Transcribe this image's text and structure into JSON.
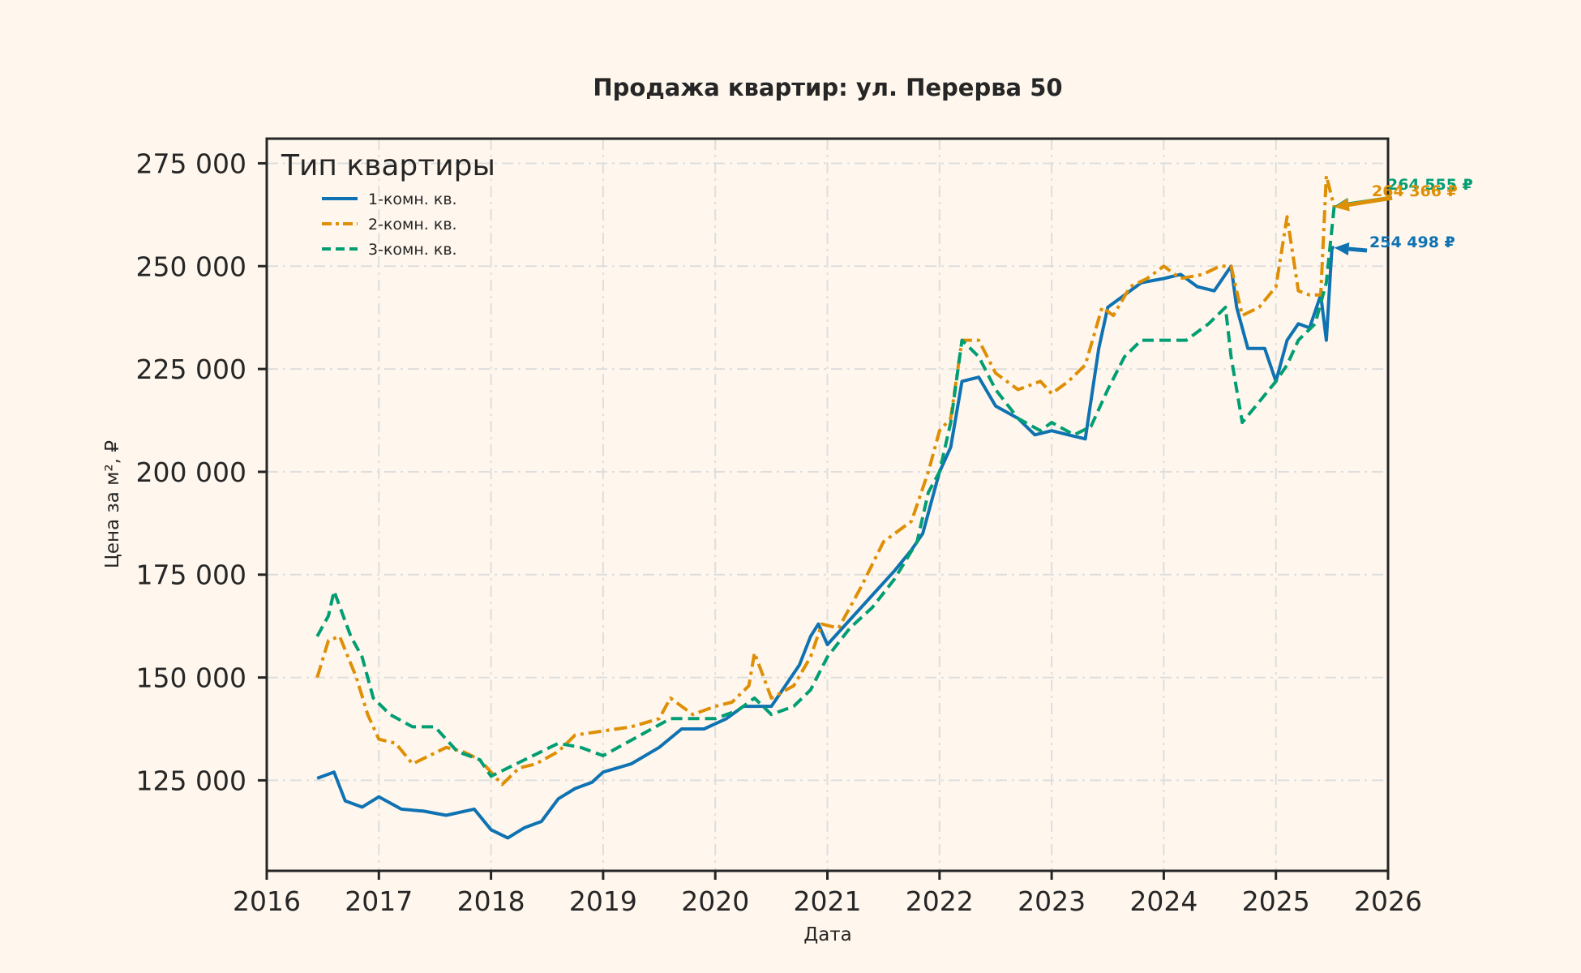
{
  "chart_data": {
    "type": "line",
    "title": "Продажа квартир: ул. Перерва 50",
    "xlabel": "Дата",
    "ylabel": "Цена за м², ₽",
    "xlim": [
      2016,
      2026
    ],
    "ylim": [
      103000,
      281000
    ],
    "x_ticks": [
      "2016",
      "2017",
      "2018",
      "2019",
      "2020",
      "2021",
      "2022",
      "2023",
      "2024",
      "2025",
      "2026"
    ],
    "y_ticks": [
      {
        "value": 125000,
        "label": "125 000"
      },
      {
        "value": 150000,
        "label": "150 000"
      },
      {
        "value": 175000,
        "label": "175 000"
      },
      {
        "value": 200000,
        "label": "200 000"
      },
      {
        "value": 225000,
        "label": "225 000"
      },
      {
        "value": 250000,
        "label": "250 000"
      },
      {
        "value": 275000,
        "label": "275 000"
      }
    ],
    "grid": true,
    "legend": {
      "title": "Тип квартиры",
      "position": "top-left"
    },
    "series": [
      {
        "name": "1-комн. кв.",
        "color": "#0f72b2",
        "dash": "solid",
        "x": [
          2016.45,
          2016.6,
          2016.7,
          2016.85,
          2017.0,
          2017.2,
          2017.4,
          2017.6,
          2017.85,
          2018.0,
          2018.15,
          2018.3,
          2018.45,
          2018.6,
          2018.75,
          2018.9,
          2019.0,
          2019.25,
          2019.5,
          2019.7,
          2019.9,
          2020.1,
          2020.25,
          2020.5,
          2020.75,
          2020.85,
          2020.92,
          2021.0,
          2021.2,
          2021.4,
          2021.6,
          2021.75,
          2021.85,
          2022.0,
          2022.1,
          2022.2,
          2022.35,
          2022.5,
          2022.7,
          2022.85,
          2023.0,
          2023.15,
          2023.3,
          2023.42,
          2023.5,
          2023.65,
          2023.8,
          2024.0,
          2024.15,
          2024.3,
          2024.45,
          2024.6,
          2024.65,
          2024.75,
          2024.9,
          2025.0,
          2025.1,
          2025.2,
          2025.3,
          2025.4,
          2025.45,
          2025.5,
          2025.52
        ],
        "y": [
          125500,
          127000,
          120000,
          118500,
          121000,
          118000,
          117500,
          116500,
          118000,
          113000,
          111000,
          113500,
          115000,
          120500,
          123000,
          124500,
          127000,
          129000,
          133000,
          137500,
          137500,
          140000,
          143000,
          143000,
          153000,
          160000,
          163000,
          158000,
          164000,
          170000,
          176000,
          181000,
          185000,
          200000,
          206000,
          222000,
          223000,
          216000,
          213000,
          209000,
          210000,
          209000,
          208000,
          230000,
          240000,
          243000,
          246000,
          247000,
          248000,
          245000,
          244000,
          250000,
          240000,
          230000,
          230000,
          222000,
          232000,
          236000,
          235000,
          243000,
          232000,
          254498,
          254498
        ]
      },
      {
        "name": "2-комн. кв.",
        "color": "#de8f05",
        "dash": "dashdot",
        "x": [
          2016.45,
          2016.55,
          2016.65,
          2016.8,
          2016.9,
          2017.0,
          2017.15,
          2017.3,
          2017.45,
          2017.6,
          2017.75,
          2017.9,
          2018.1,
          2018.25,
          2018.4,
          2018.6,
          2018.75,
          2019.0,
          2019.25,
          2019.5,
          2019.6,
          2019.8,
          2020.0,
          2020.15,
          2020.3,
          2020.35,
          2020.5,
          2020.7,
          2020.85,
          2020.95,
          2021.1,
          2021.3,
          2021.5,
          2021.75,
          2021.9,
          2022.0,
          2022.1,
          2022.2,
          2022.35,
          2022.5,
          2022.7,
          2022.9,
          2023.0,
          2023.15,
          2023.3,
          2023.45,
          2023.55,
          2023.7,
          2023.85,
          2024.0,
          2024.15,
          2024.35,
          2024.5,
          2024.6,
          2024.7,
          2024.85,
          2025.0,
          2025.1,
          2025.2,
          2025.3,
          2025.4,
          2025.45,
          2025.52
        ],
        "y": [
          150000,
          159000,
          160000,
          150000,
          141000,
          135000,
          134000,
          129000,
          131000,
          133000,
          132000,
          130000,
          124000,
          128000,
          129000,
          132000,
          136000,
          137000,
          138000,
          140000,
          145000,
          141000,
          143000,
          144000,
          148000,
          156000,
          145000,
          148000,
          155000,
          163000,
          162000,
          172000,
          183000,
          188000,
          200000,
          210000,
          213000,
          232000,
          232000,
          224000,
          220000,
          222000,
          219000,
          222000,
          226000,
          240000,
          238000,
          245000,
          247000,
          250000,
          247000,
          248000,
          250000,
          250000,
          238000,
          240000,
          245000,
          262000,
          244000,
          243000,
          243000,
          272000,
          264366
        ]
      },
      {
        "name": "3-комн. кв.",
        "color": "#029e73",
        "dash": "dashed",
        "x": [
          2016.45,
          2016.55,
          2016.6,
          2016.75,
          2016.85,
          2016.95,
          2017.1,
          2017.3,
          2017.5,
          2017.7,
          2017.9,
          2018.0,
          2018.15,
          2018.3,
          2018.45,
          2018.6,
          2018.8,
          2019.0,
          2019.2,
          2019.4,
          2019.6,
          2019.8,
          2020.0,
          2020.2,
          2020.35,
          2020.5,
          2020.7,
          2020.85,
          2021.0,
          2021.2,
          2021.4,
          2021.6,
          2021.8,
          2021.9,
          2022.0,
          2022.1,
          2022.2,
          2022.35,
          2022.5,
          2022.7,
          2022.9,
          2023.0,
          2023.2,
          2023.35,
          2023.5,
          2023.65,
          2023.8,
          2024.0,
          2024.2,
          2024.4,
          2024.55,
          2024.6,
          2024.7,
          2024.85,
          2025.0,
          2025.1,
          2025.2,
          2025.35,
          2025.45,
          2025.52
        ],
        "y": [
          160000,
          165000,
          171000,
          160000,
          155000,
          145000,
          141000,
          138000,
          138000,
          132000,
          130000,
          126000,
          128000,
          130000,
          132000,
          134000,
          133000,
          131000,
          134000,
          137000,
          140000,
          140000,
          140000,
          142000,
          145000,
          141000,
          143000,
          147000,
          155000,
          162000,
          167000,
          174000,
          183000,
          195000,
          200000,
          212000,
          232000,
          228000,
          220000,
          213000,
          210000,
          212000,
          209000,
          211000,
          220000,
          228000,
          232000,
          232000,
          232000,
          236000,
          240000,
          228000,
          212000,
          217000,
          222000,
          226000,
          232000,
          236000,
          246000,
          264555
        ]
      }
    ],
    "annotations": [
      {
        "text": "264 555 ₽",
        "series": "3-комн. кв.",
        "x": 2025.52,
        "y": 264555,
        "color": "#029e73"
      },
      {
        "text": "264 366 ₽",
        "series": "2-комн. кв.",
        "x": 2025.52,
        "y": 264366,
        "color": "#de8f05"
      },
      {
        "text": "254 498 ₽",
        "series": "1-комн. кв.",
        "x": 2025.52,
        "y": 254498,
        "color": "#0f72b2"
      }
    ]
  }
}
